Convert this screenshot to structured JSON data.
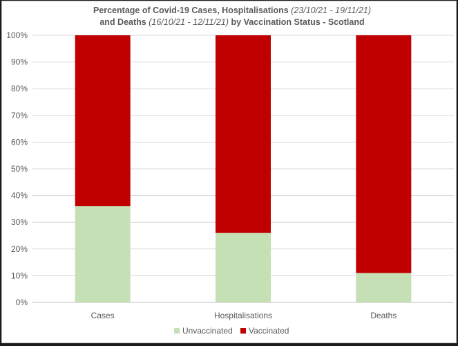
{
  "chart_data": {
    "type": "bar",
    "stacked": true,
    "percent": true,
    "title_line1": {
      "main": "Percentage of Covid-19 Cases, Hospitalisations ",
      "italic": "(23/10/21 - 19/11/21)"
    },
    "title_line2": {
      "main_pre": "and Deaths ",
      "italic": "(16/10/21 - 12/11/21)",
      "main_post": " by Vaccination Status - Scotland"
    },
    "categories": [
      "Cases",
      "Hospitalisations",
      "Deaths"
    ],
    "series": [
      {
        "name": "Unvaccinated",
        "color": "#c5e0b4",
        "values": [
          36,
          26,
          11
        ]
      },
      {
        "name": "Vaccinated",
        "color": "#c00000",
        "values": [
          64,
          74,
          89
        ]
      }
    ],
    "ylim": [
      0,
      100
    ],
    "yticks": [
      "0%",
      "10%",
      "20%",
      "30%",
      "40%",
      "50%",
      "60%",
      "70%",
      "80%",
      "90%",
      "100%"
    ],
    "grid": true,
    "legend_position": "bottom"
  }
}
